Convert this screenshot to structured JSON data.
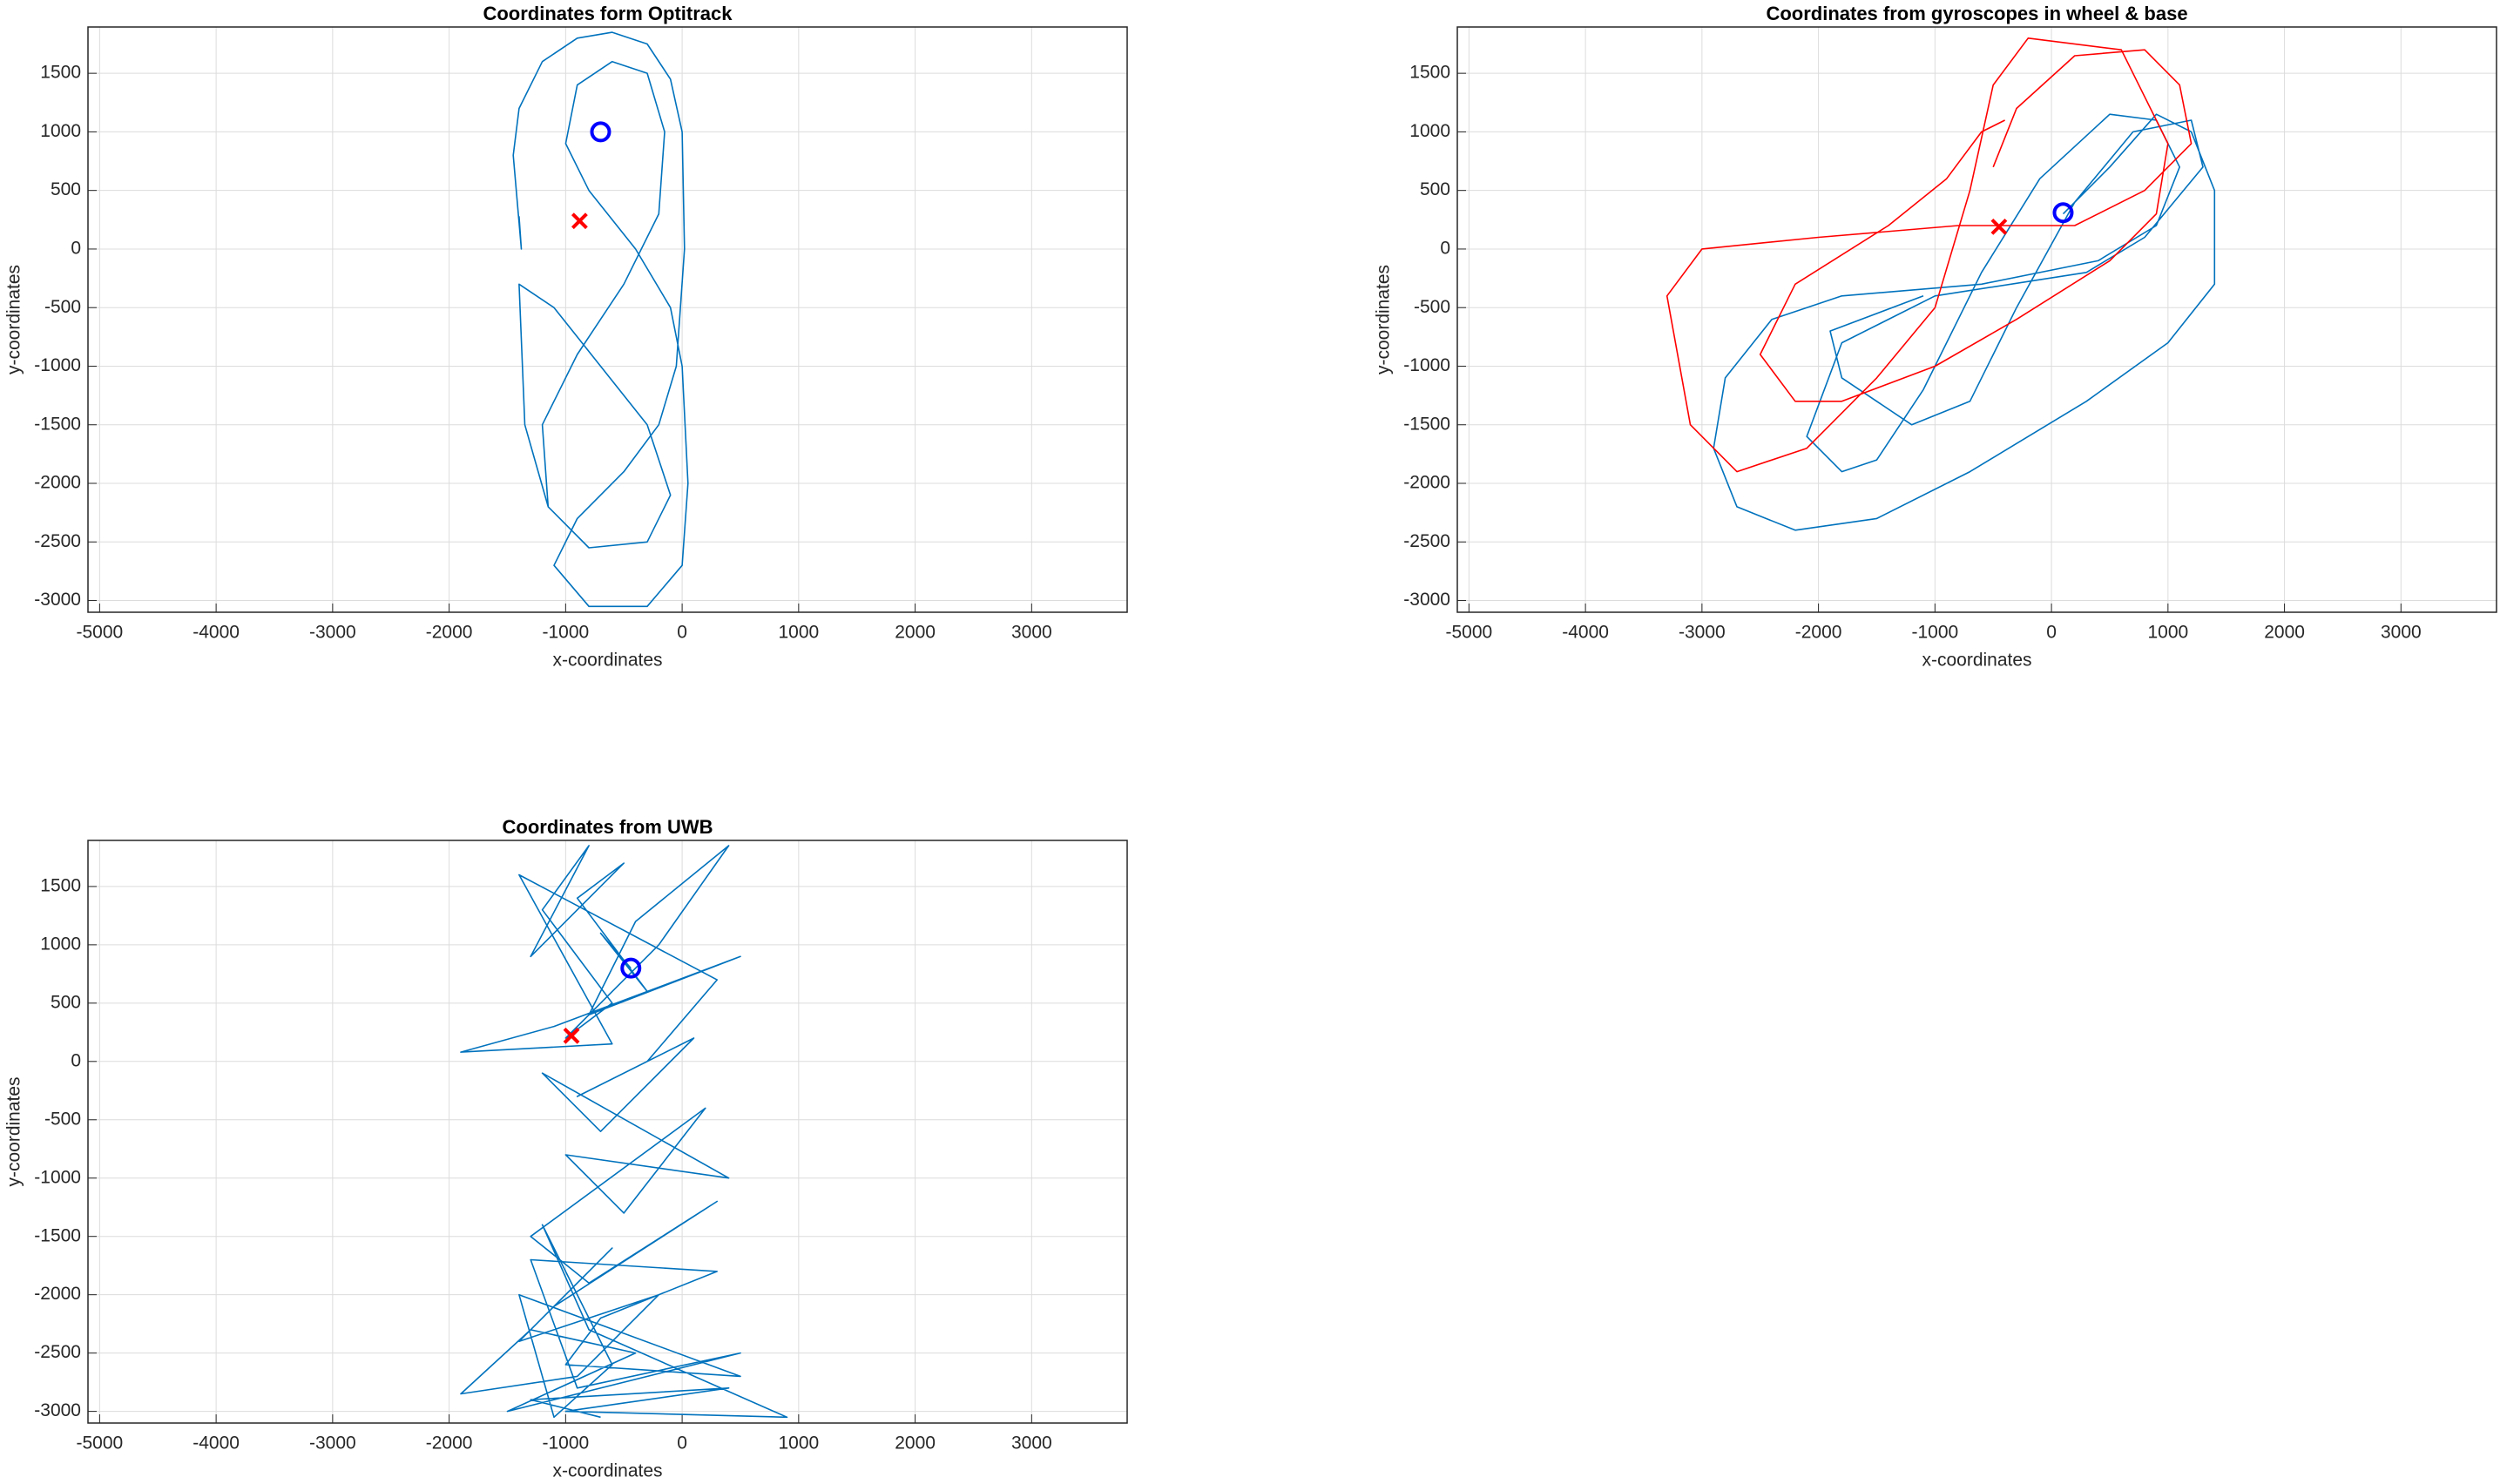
{
  "chart_data": [
    {
      "type": "line",
      "title": "Coordinates form Optitrack",
      "x_label": "x-coordinates",
      "y_label": "y-coordinates",
      "xlim": [
        -5100,
        3820
      ],
      "ylim": [
        -3100,
        1895
      ],
      "xticks": [
        -5000,
        -4000,
        -3000,
        -2000,
        -1000,
        0,
        1000,
        2000,
        3000
      ],
      "yticks": [
        -3000,
        -2500,
        -2000,
        -1500,
        -1000,
        -500,
        0,
        500,
        1000,
        1500
      ],
      "grid": true,
      "series": [
        {
          "color": "#0072bd",
          "x": [
            -1400,
            -1380,
            -1450,
            -1400,
            -1200,
            -900,
            -600,
            -300,
            -100,
            0,
            20,
            -50,
            -200,
            -500,
            -900,
            -1100,
            -800,
            -300,
            0,
            50,
            0,
            -100,
            -400,
            -800,
            -1000,
            -900,
            -600,
            -300,
            -150,
            -200,
            -500,
            -900,
            -1200,
            -1150,
            -800,
            -300,
            -100,
            -300,
            -700,
            -1100,
            -1400,
            -1350,
            -1150
          ],
          "values": [
            280,
            0,
            800,
            1200,
            1600,
            1800,
            1850,
            1750,
            1450,
            1000,
            0,
            -1000,
            -1500,
            -1900,
            -2300,
            -2700,
            -3050,
            -3050,
            -2700,
            -2000,
            -1000,
            -500,
            0,
            500,
            900,
            1400,
            1600,
            1500,
            1000,
            300,
            -300,
            -900,
            -1500,
            -2200,
            -2550,
            -2500,
            -2100,
            -1500,
            -1000,
            -500,
            -300,
            -1500,
            -2200
          ]
        },
        {
          "color": "#0000ff",
          "marker": "o",
          "x": [
            -700
          ],
          "values": [
            1000
          ]
        },
        {
          "color": "#ff0000",
          "marker": "x",
          "x": [
            -880
          ],
          "values": [
            240
          ]
        }
      ]
    },
    {
      "type": "line",
      "title": "Coordinates from gyroscopes in wheel & base",
      "x_label": "x-coordinates",
      "y_label": "y-coordinates",
      "xlim": [
        -5100,
        3820
      ],
      "ylim": [
        -3100,
        1895
      ],
      "xticks": [
        -5000,
        -4000,
        -3000,
        -2000,
        -1000,
        0,
        1000,
        2000,
        3000
      ],
      "yticks": [
        -3000,
        -2500,
        -2000,
        -1500,
        -1000,
        -500,
        0,
        500,
        1000,
        1500
      ],
      "grid": true,
      "series": [
        {
          "color": "#0072bd",
          "x": [
            100,
            500,
            900,
            1200,
            1400,
            1400,
            1000,
            300,
            -700,
            -1500,
            -2200,
            -2700,
            -2900,
            -2800,
            -2400,
            -1800,
            -600,
            400,
            900,
            1100,
            900,
            500,
            -100,
            -600,
            -1100,
            -1500,
            -1800,
            -2100,
            -1800,
            -1000,
            300,
            800,
            1300,
            1200,
            700,
            200,
            -300,
            -700,
            -1200,
            -1800,
            -1900,
            -1100
          ],
          "values": [
            300,
            700,
            1150,
            1000,
            500,
            -300,
            -800,
            -1300,
            -1900,
            -2300,
            -2400,
            -2200,
            -1700,
            -1100,
            -600,
            -400,
            -300,
            -100,
            200,
            700,
            1100,
            1150,
            600,
            -200,
            -1200,
            -1800,
            -1900,
            -1600,
            -800,
            -400,
            -200,
            100,
            700,
            1100,
            1000,
            400,
            -500,
            -1300,
            -1500,
            -1100,
            -700,
            -400
          ]
        },
        {
          "color": "#ff0000",
          "x": [
            -500,
            -300,
            200,
            800,
            1100,
            1200,
            800,
            200,
            -800,
            -2000,
            -3000,
            -3300,
            -3100,
            -2700,
            -2100,
            -1500,
            -1000,
            -700,
            -500,
            -200,
            600,
            1000,
            900,
            500,
            -300,
            -1000,
            -1800,
            -2200,
            -2500,
            -2200,
            -1400,
            -900,
            -600,
            -400
          ],
          "values": [
            700,
            1200,
            1650,
            1700,
            1400,
            900,
            500,
            200,
            200,
            100,
            0,
            -400,
            -1500,
            -1900,
            -1700,
            -1100,
            -500,
            500,
            1400,
            1800,
            1700,
            900,
            300,
            -100,
            -600,
            -1000,
            -1300,
            -1300,
            -900,
            -300,
            200,
            600,
            1000,
            1100
          ]
        },
        {
          "color": "#0000ff",
          "marker": "o",
          "x": [
            100
          ],
          "values": [
            310
          ]
        },
        {
          "color": "#ff0000",
          "marker": "x",
          "x": [
            -450
          ],
          "values": [
            190
          ]
        }
      ]
    },
    {
      "type": "line",
      "title": "Coordinates from UWB",
      "x_label": "x-coordinates",
      "y_label": "y-coordinates",
      "xlim": [
        -5100,
        3820
      ],
      "ylim": [
        -3100,
        1895
      ],
      "xticks": [
        -5000,
        -4000,
        -3000,
        -2000,
        -1000,
        0,
        1000,
        2000,
        3000
      ],
      "yticks": [
        -3000,
        -2500,
        -2000,
        -1500,
        -1000,
        -500,
        0,
        500,
        1000,
        1500
      ],
      "grid": true,
      "series": [
        {
          "color": "#0072bd",
          "x": [
            -440,
            -700,
            -300,
            -900,
            -500,
            -1300,
            -800,
            -1200,
            -600,
            -1000,
            -200,
            400,
            -400,
            -800,
            500,
            -1100,
            -1900,
            -600,
            -1400,
            300,
            -300,
            -900,
            100,
            -700,
            -1200,
            400,
            -1000,
            -500,
            200,
            -1300,
            -800,
            300,
            -1100,
            -600,
            -1400,
            -200,
            -900,
            -1900,
            -1300,
            -400,
            -1500,
            500,
            -900,
            -1300,
            300,
            -700,
            -1000,
            500,
            -1400,
            -1100,
            -600,
            -1200,
            -800,
            900,
            -1000,
            400,
            -1300,
            -700
          ],
          "values": [
            800,
            1100,
            600,
            1400,
            1700,
            900,
            1850,
            1300,
            500,
            200,
            1000,
            1850,
            1200,
            400,
            900,
            300,
            80,
            150,
            1600,
            700,
            0,
            -300,
            200,
            -600,
            -100,
            -1000,
            -800,
            -1300,
            -400,
            -1500,
            -1900,
            -1200,
            -2100,
            -1600,
            -2400,
            -2000,
            -2700,
            -2850,
            -2300,
            -2500,
            -3000,
            -2500,
            -2800,
            -1700,
            -1800,
            -2200,
            -2600,
            -2700,
            -2000,
            -3050,
            -2600,
            -1400,
            -2300,
            -3050,
            -3000,
            -2800,
            -2900,
            -3050
          ]
        },
        {
          "color": "#0000ff",
          "marker": "o",
          "x": [
            -440
          ],
          "values": [
            800
          ]
        },
        {
          "color": "#ff0000",
          "marker": "x",
          "x": [
            -950
          ],
          "values": [
            220
          ]
        }
      ]
    }
  ]
}
